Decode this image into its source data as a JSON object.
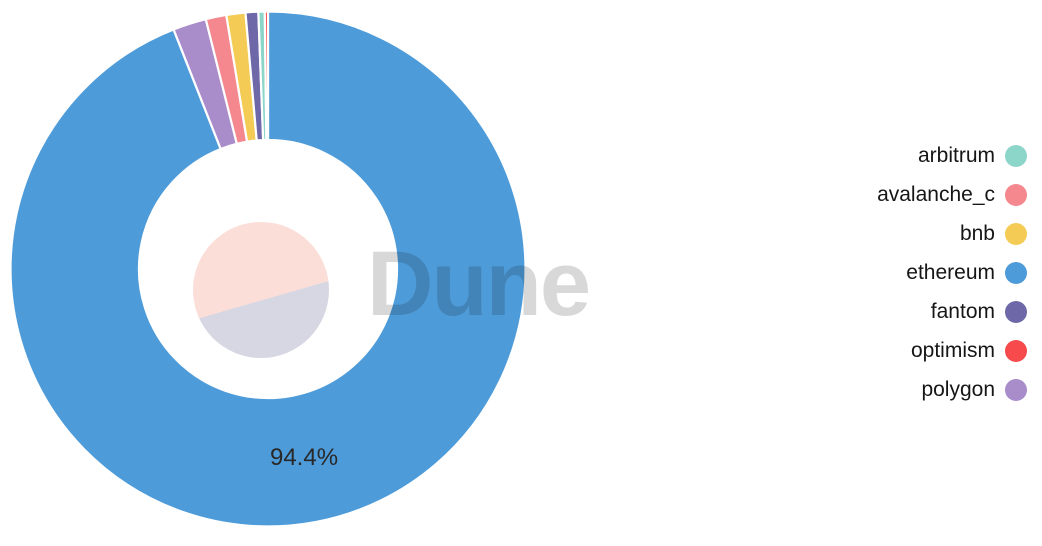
{
  "watermark": "Dune",
  "chart_data": {
    "type": "pie",
    "variant": "donut",
    "title": "",
    "legend_position": "right",
    "series": [
      {
        "name": "arbitrum",
        "color": "#8BD5C9",
        "value": 0.4
      },
      {
        "name": "avalanche_c",
        "color": "#F4888E",
        "value": 1.3
      },
      {
        "name": "bnb",
        "color": "#F3CB55",
        "value": 1.2
      },
      {
        "name": "ethereum",
        "color": "#4E9BD9",
        "value": 94.4,
        "label": "94.4%"
      },
      {
        "name": "fantom",
        "color": "#6F68A8",
        "value": 0.8
      },
      {
        "name": "optimism",
        "color": "#F74A4D",
        "value": 0.2
      },
      {
        "name": "polygon",
        "color": "#A98CCA",
        "value": 2.1
      }
    ],
    "draw_order": [
      "ethereum",
      "polygon",
      "avalanche_c",
      "bnb",
      "fantom",
      "arbitrum",
      "optimism"
    ],
    "displayed_percentage_label": "94.4%"
  }
}
